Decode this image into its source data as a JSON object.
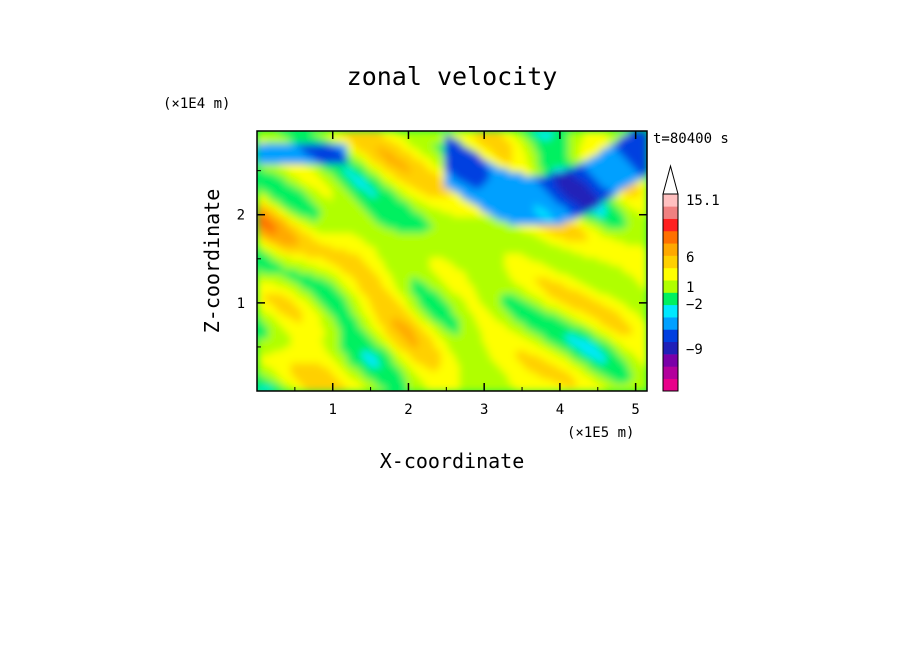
{
  "chart_data": {
    "type": "heatmap",
    "title": "zonal velocity",
    "xlabel": "X-coordinate",
    "ylabel": "Z-coordinate",
    "x_unit": "(×1E5 m)",
    "y_unit": "(×1E4 m)",
    "time_label": "t=80400 s",
    "xlim": [
      0,
      5.15
    ],
    "ylim": [
      0,
      2.95
    ],
    "x_ticks": [
      "1",
      "2",
      "3",
      "4",
      "5"
    ],
    "y_ticks": [
      "1",
      "2"
    ],
    "colorbar": {
      "labels": [
        "15.1",
        "6",
        "1",
        "−2",
        "−9"
      ],
      "colors": [
        "#e8008a",
        "#b3009c",
        "#7a00a8",
        "#2020b8",
        "#0040e0",
        "#00a0ff",
        "#00e8ff",
        "#00f060",
        "#b0ff00",
        "#ffff00",
        "#ffd000",
        "#ffa800",
        "#ff7000",
        "#ff2020",
        "#f08080",
        "#ffc0c0"
      ],
      "extend": "max"
    }
  }
}
